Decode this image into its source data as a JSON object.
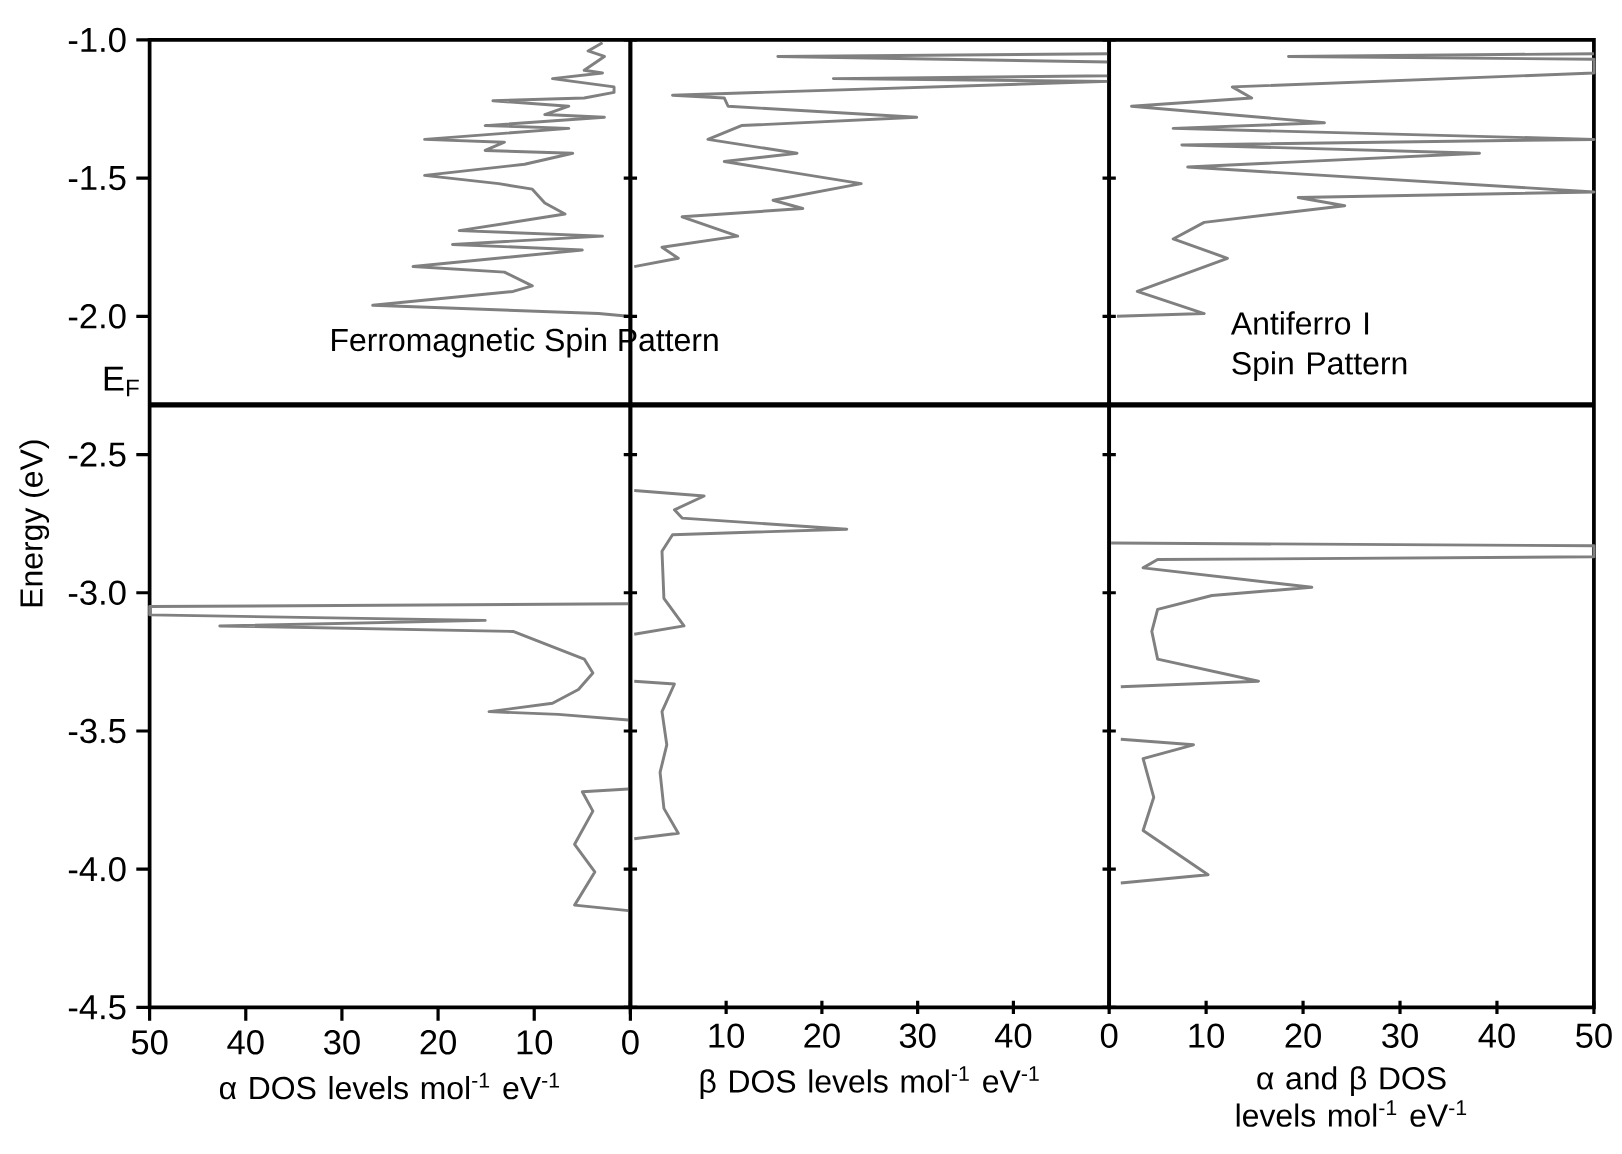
{
  "chart_data": [
    {
      "type": "line",
      "ylabel": "Energy (eV)",
      "xlabel": "α DOS levels mol$^{-1}$ eV$^{-1}$",
      "xlim": [
        50,
        0
      ],
      "xticks": [
        50,
        40,
        30,
        20,
        10,
        0
      ],
      "ylim": [
        -4.5,
        -1.0
      ],
      "yticks": [
        -4.5,
        {
          "value": -4.0,
          "label": "-4.0"
        },
        -3.5,
        {
          "value": -3.0,
          "label": "-3.0"
        },
        -2.5,
        {
          "value": -2.0,
          "label": "-2.0"
        },
        -1.5,
        {
          "value": -1.0,
          "label": "-1.0"
        }
      ],
      "ref_lines": [
        {
          "axis": "y",
          "value": -2.32,
          "label": "E$_{F}$",
          "color": "#000000"
        }
      ],
      "annotations": [
        "Ferromagnetic Spin Pattern"
      ],
      "series": [
        {
          "color": "#808080",
          "x": [
            2.9,
            4.4,
            2.7,
            4.8,
            2.9,
            8.1,
            1.7,
            1.7,
            4.8,
            14.3,
            6.4,
            8.9,
            2.7,
            15.1,
            6.4,
            21.4,
            13.1,
            15.1,
            6.0,
            11.0,
            21.4,
            13.7,
            10.2,
            8.9,
            6.8,
            17.8,
            2.9,
            18.5,
            5.0,
            22.6,
            13.1,
            10.2,
            12.2,
            26.8,
            3.3,
            0.2,
            null,
            0.2,
            50,
            50,
            15.1,
            42.7,
            12.2,
            4.8,
            3.9,
            5.4,
            8.1,
            14.7,
            7.5,
            0.2,
            null,
            0.2,
            5.0,
            3.9,
            5.8,
            3.7,
            5.8,
            0.2
          ],
          "values": [
            -1.01,
            -1.04,
            -1.06,
            -1.11,
            -1.12,
            -1.14,
            -1.17,
            -1.19,
            -1.21,
            -1.22,
            -1.24,
            -1.27,
            -1.28,
            -1.31,
            -1.32,
            -1.36,
            -1.37,
            -1.4,
            -1.41,
            -1.45,
            -1.49,
            -1.52,
            -1.54,
            -1.59,
            -1.63,
            -1.69,
            -1.71,
            -1.74,
            -1.76,
            -1.82,
            -1.84,
            -1.89,
            -1.91,
            -1.96,
            -1.99,
            -2.0,
            null,
            -3.04,
            -3.05,
            -3.08,
            -3.1,
            -3.12,
            -3.14,
            -3.24,
            -3.29,
            -3.35,
            -3.4,
            -3.43,
            -3.44,
            -3.46,
            null,
            -3.71,
            -3.72,
            -3.79,
            -3.91,
            -4.01,
            -4.13,
            -4.15
          ]
        }
      ]
    },
    {
      "type": "line",
      "xlabel": "β DOS levels mol$^{-1}$ eV$^{-1}$",
      "xlim": [
        0,
        50
      ],
      "xticks": [
        {
          "value": 0,
          "label": null
        },
        10,
        20,
        30,
        40
      ],
      "ylim": [
        -4.5,
        -1.0
      ],
      "yticks": [
        -4.5,
        -4.0,
        -3.5,
        -3.0,
        -2.5,
        -2.0,
        -1.5,
        -1.0
      ],
      "tick_labels": "x",
      "ref_lines": [
        {
          "axis": "y",
          "value": -2.32,
          "color": "#000000"
        }
      ],
      "series": [
        {
          "color": "#808080",
          "x": [
            50,
            15.4,
            50,
            50,
            21.2,
            50,
            4.4,
            9.8,
            10.2,
            29.9,
            11.6,
            8.1,
            17.4,
            9.8,
            24.1,
            14.9,
            18.0,
            5.4,
            11.2,
            3.3,
            5.0,
            0.4,
            null,
            0.4,
            7.7,
            4.6,
            5.4,
            22.6,
            4.4,
            3.3,
            3.5,
            5.6,
            0.4,
            null,
            0.4,
            4.6,
            3.3,
            3.8,
            3.1,
            3.5,
            5.0,
            0.4
          ],
          "values": [
            -1.05,
            -1.06,
            -1.08,
            -1.13,
            -1.14,
            -1.15,
            -1.2,
            -1.21,
            -1.24,
            -1.28,
            -1.31,
            -1.36,
            -1.41,
            -1.44,
            -1.52,
            -1.58,
            -1.61,
            -1.64,
            -1.71,
            -1.75,
            -1.79,
            -1.82,
            null,
            -2.63,
            -2.65,
            -2.7,
            -2.73,
            -2.77,
            -2.79,
            -2.85,
            -3.02,
            -3.12,
            -3.15,
            null,
            -3.32,
            -3.33,
            -3.43,
            -3.55,
            -3.65,
            -3.78,
            -3.87,
            -3.89
          ]
        }
      ]
    },
    {
      "type": "line",
      "xlabel": "α and β DOS levels mol$^{-1}$ eV$^{-1}$",
      "xlim": [
        0,
        50
      ],
      "xticks": [
        0,
        10,
        20,
        30,
        40,
        50
      ],
      "ylim": [
        -4.5,
        -1.0
      ],
      "yticks": [
        -4.5,
        -4.0,
        -3.5,
        -3.0,
        -2.5,
        -2.0,
        -1.5,
        -1.0
      ],
      "tick_labels": "x",
      "ref_lines": [
        {
          "axis": "y",
          "value": -2.32,
          "color": "#000000"
        }
      ],
      "annotations": [
        "Antiferro I Spin Pattern"
      ],
      "series": [
        {
          "color": "#808080",
          "x": [
            50,
            18.5,
            50,
            50,
            12.7,
            14.7,
            2.3,
            22.2,
            6.6,
            50,
            7.5,
            38.2,
            8.1,
            50,
            19.5,
            24.3,
            9.8,
            6.6,
            12.2,
            2.9,
            9.8,
            0.8,
            null,
            0.2,
            50,
            50,
            5.0,
            3.5,
            20.9,
            10.6,
            5.0,
            4.4,
            5.0,
            15.4,
            1.2,
            null,
            1.2,
            8.7,
            3.5,
            4.6,
            3.5,
            10.2,
            1.2
          ],
          "values": [
            -1.05,
            -1.06,
            -1.07,
            -1.12,
            -1.17,
            -1.21,
            -1.24,
            -1.3,
            -1.32,
            -1.36,
            -1.38,
            -1.41,
            -1.46,
            -1.55,
            -1.57,
            -1.6,
            -1.66,
            -1.72,
            -1.79,
            -1.91,
            -1.99,
            -2.0,
            null,
            -2.82,
            -2.83,
            -2.87,
            -2.88,
            -2.91,
            -2.98,
            -3.01,
            -3.06,
            -3.14,
            -3.24,
            -3.32,
            -3.34,
            null,
            -3.53,
            -3.55,
            -3.6,
            -3.74,
            -3.86,
            -4.02,
            -4.05
          ]
        }
      ]
    }
  ]
}
